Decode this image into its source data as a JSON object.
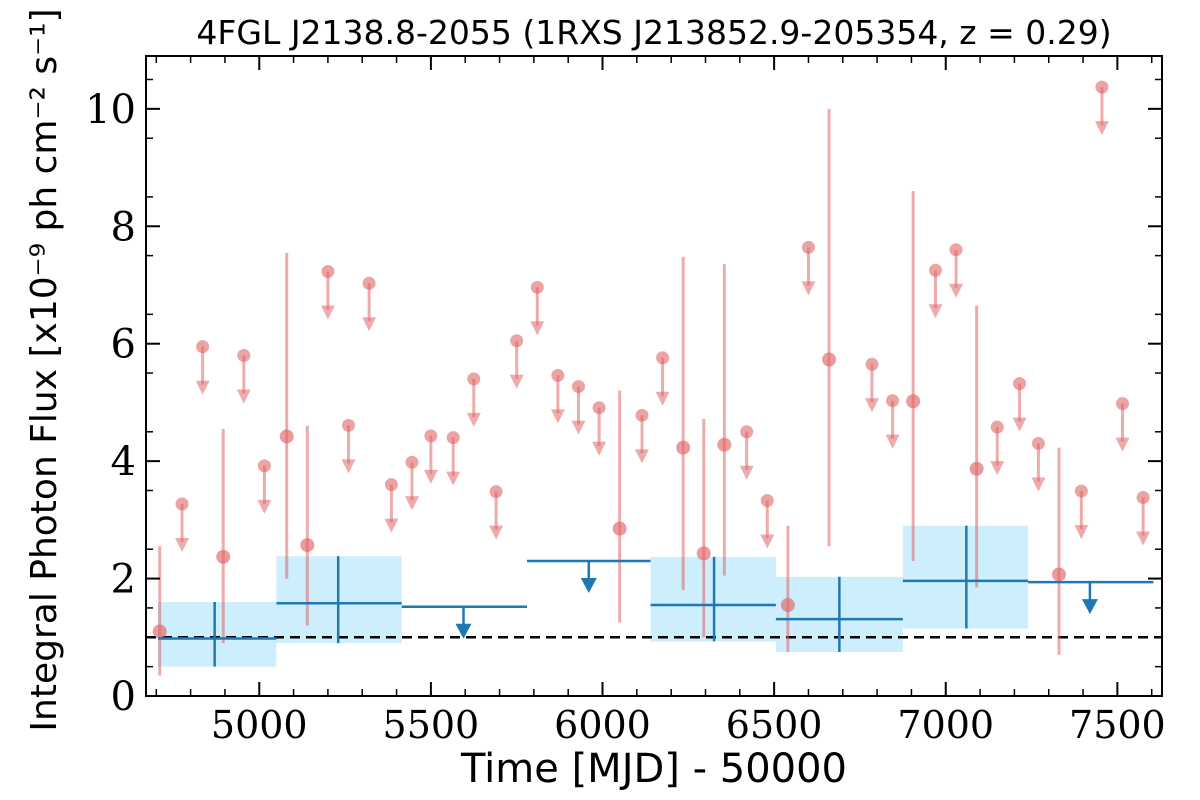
{
  "chart_data": {
    "type": "scatter",
    "title": "4FGL J2138.8-2055 (1RXS J213852.9-205354, z = 0.29)",
    "xlabel": "Time [MJD] - 50000",
    "ylabel": "Integral Photon Flux [x10⁻⁹ ph cm⁻² s⁻¹]",
    "xlim": [
      4670,
      7630
    ],
    "ylim": [
      0,
      10.9
    ],
    "xticks": [
      5000,
      5500,
      6000,
      6500,
      7000,
      7500
    ],
    "yticks": [
      0,
      2,
      4,
      6,
      8,
      10
    ],
    "x_tick_labels": [
      "5000",
      "5500",
      "6000",
      "6500",
      "7000",
      "7500"
    ],
    "y_tick_labels": [
      "0",
      "2",
      "4",
      "6",
      "8",
      "10"
    ],
    "reference_line": {
      "y": 1.0,
      "style": "dashed",
      "color": "#000000"
    },
    "colors": {
      "short_bins": "#e06666",
      "long_bins": "#1f77b4",
      "band": "#cdeefc"
    },
    "series": [
      {
        "bin_width": "short",
        "detections": [
          {
            "x": 4710,
            "y": 1.1,
            "ylo": 0.35,
            "yhi": 2.55
          },
          {
            "x": 4895,
            "y": 2.37,
            "ylo": 0.9,
            "yhi": 4.55
          },
          {
            "x": 5080,
            "y": 4.42,
            "ylo": 2.0,
            "yhi": 7.55
          },
          {
            "x": 5140,
            "y": 2.57,
            "ylo": 1.2,
            "yhi": 4.6
          },
          {
            "x": 6050,
            "y": 2.85,
            "ylo": 1.25,
            "yhi": 5.2
          },
          {
            "x": 6235,
            "y": 4.23,
            "ylo": 1.8,
            "yhi": 7.48
          },
          {
            "x": 6295,
            "y": 2.43,
            "ylo": 1.0,
            "yhi": 4.72
          },
          {
            "x": 6355,
            "y": 4.28,
            "ylo": 2.05,
            "yhi": 7.36
          },
          {
            "x": 6540,
            "y": 1.55,
            "ylo": 0.75,
            "yhi": 2.9
          },
          {
            "x": 6660,
            "y": 5.73,
            "ylo": 2.55,
            "yhi": 10.0
          },
          {
            "x": 6905,
            "y": 5.02,
            "ylo": 2.3,
            "yhi": 8.6
          },
          {
            "x": 7090,
            "y": 3.87,
            "ylo": 1.85,
            "yhi": 6.65
          },
          {
            "x": 7330,
            "y": 2.07,
            "ylo": 0.7,
            "yhi": 4.23
          }
        ],
        "upper_limits": [
          {
            "x": 4775,
            "y": 3.27
          },
          {
            "x": 4835,
            "y": 5.95
          },
          {
            "x": 4955,
            "y": 5.8
          },
          {
            "x": 5015,
            "y": 3.92
          },
          {
            "x": 5200,
            "y": 7.23
          },
          {
            "x": 5260,
            "y": 4.61
          },
          {
            "x": 5320,
            "y": 7.03
          },
          {
            "x": 5385,
            "y": 3.6
          },
          {
            "x": 5445,
            "y": 3.98
          },
          {
            "x": 5500,
            "y": 4.43
          },
          {
            "x": 5565,
            "y": 4.4
          },
          {
            "x": 5625,
            "y": 5.4
          },
          {
            "x": 5690,
            "y": 3.48
          },
          {
            "x": 5750,
            "y": 6.05
          },
          {
            "x": 5810,
            "y": 6.96
          },
          {
            "x": 5870,
            "y": 5.46
          },
          {
            "x": 5930,
            "y": 5.27
          },
          {
            "x": 5990,
            "y": 4.91
          },
          {
            "x": 6115,
            "y": 4.78
          },
          {
            "x": 6175,
            "y": 5.76
          },
          {
            "x": 6420,
            "y": 4.5
          },
          {
            "x": 6480,
            "y": 3.33
          },
          {
            "x": 6600,
            "y": 7.64
          },
          {
            "x": 6785,
            "y": 5.65
          },
          {
            "x": 6845,
            "y": 5.03
          },
          {
            "x": 6970,
            "y": 7.25
          },
          {
            "x": 7030,
            "y": 7.6
          },
          {
            "x": 7150,
            "y": 4.58
          },
          {
            "x": 7215,
            "y": 5.32
          },
          {
            "x": 7270,
            "y": 4.3
          },
          {
            "x": 7395,
            "y": 3.49
          },
          {
            "x": 7455,
            "y": 10.37
          },
          {
            "x": 7515,
            "y": 4.98
          },
          {
            "x": 7575,
            "y": 3.38
          }
        ]
      },
      {
        "bin_width": "long",
        "detections": [
          {
            "x0": 4705,
            "x1": 5050,
            "x": 4870,
            "y": 0.98,
            "ylo": 0.5,
            "yhi": 1.6
          },
          {
            "x0": 5050,
            "x1": 5415,
            "x": 5230,
            "y": 1.58,
            "ylo": 0.9,
            "yhi": 2.38
          },
          {
            "x0": 6140,
            "x1": 6505,
            "x": 6325,
            "y": 1.55,
            "ylo": 0.93,
            "yhi": 2.37
          },
          {
            "x0": 6505,
            "x1": 6875,
            "x": 6690,
            "y": 1.31,
            "ylo": 0.75,
            "yhi": 2.03
          },
          {
            "x0": 6875,
            "x1": 7240,
            "x": 7060,
            "y": 1.96,
            "ylo": 1.15,
            "yhi": 2.9
          }
        ],
        "upper_limits": [
          {
            "x0": 5415,
            "x1": 5780,
            "x": 5595,
            "y": 1.52
          },
          {
            "x0": 5780,
            "x1": 6140,
            "x": 5960,
            "y": 2.3
          },
          {
            "x0": 7240,
            "x1": 7605,
            "x": 7420,
            "y": 1.94
          }
        ]
      }
    ]
  }
}
